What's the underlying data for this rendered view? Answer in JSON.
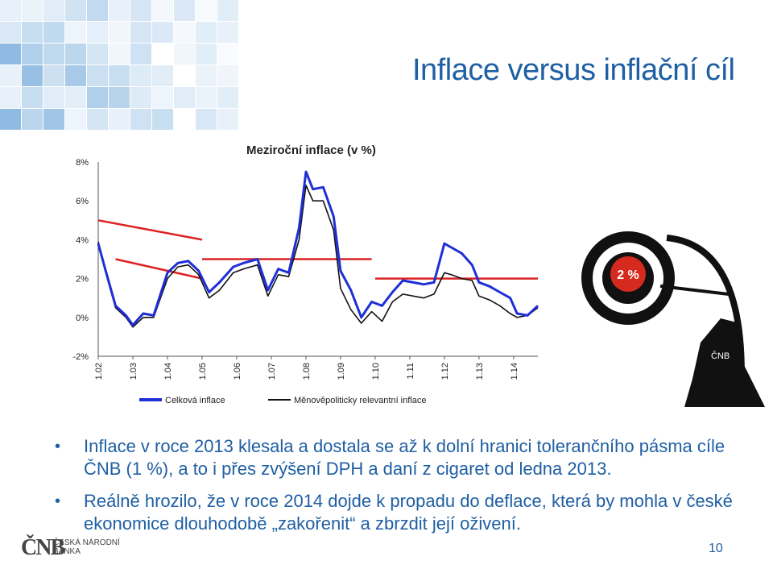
{
  "slide": {
    "title": "Inflace versus inflační cíl",
    "page_number": "10",
    "logo_mark": "ČNB",
    "logo_name": "ČESKÁ NÁRODNÍ BANKA"
  },
  "bullets": [
    "Inflace v roce 2013 klesala a dostala se až k dolní hranici tolerančního pásma cíle ČNB (1 %), a to i přes zvýšení DPH a daní z cigaret od ledna 2013.",
    "Reálně hrozilo, že v roce 2014 dojde k propadu do deflace, která by mohla v české ekonomice dlouhodobě „zakořenit“ a zbrzdit její oživení."
  ],
  "target": {
    "label": "2 %",
    "figure_label": "ČNB"
  },
  "chart_data": {
    "type": "line",
    "title": "Meziroční inflace (v %)",
    "xlabel": "",
    "ylabel": "",
    "ylim": [
      -2,
      8
    ],
    "yticks": [
      "8%",
      "6%",
      "4%",
      "2%",
      "0%",
      "-2%"
    ],
    "x_ticklabels": [
      "1.02",
      "1.03",
      "1.04",
      "1.05",
      "1.06",
      "1.07",
      "1.08",
      "1.09",
      "1.10",
      "1.11",
      "1.12",
      "1.13",
      "1.14"
    ],
    "x_range": [
      2002.0,
      2014.7
    ],
    "grid": false,
    "legend_position": "bottom",
    "colors": {
      "headline": "#1f2fd6",
      "monetary": "#111111",
      "target": "#dd2222"
    },
    "series": [
      {
        "name": "Celková inflace",
        "x": [
          2002.0,
          2002.2,
          2002.5,
          2002.8,
          2003.0,
          2003.3,
          2003.6,
          2004.0,
          2004.3,
          2004.6,
          2004.9,
          2005.2,
          2005.5,
          2005.9,
          2006.2,
          2006.6,
          2006.9,
          2007.2,
          2007.5,
          2007.8,
          2008.0,
          2008.2,
          2008.5,
          2008.8,
          2009.0,
          2009.3,
          2009.6,
          2009.9,
          2010.2,
          2010.5,
          2010.8,
          2011.1,
          2011.4,
          2011.7,
          2012.0,
          2012.2,
          2012.5,
          2012.8,
          2013.0,
          2013.3,
          2013.6,
          2013.9,
          2014.1,
          2014.4,
          2014.7
        ],
        "values": [
          3.8,
          2.5,
          0.6,
          0.1,
          -0.4,
          0.2,
          0.1,
          2.3,
          2.8,
          2.9,
          2.4,
          1.3,
          1.8,
          2.6,
          2.8,
          3.0,
          1.4,
          2.5,
          2.3,
          4.6,
          7.5,
          6.6,
          6.7,
          5.2,
          2.4,
          1.4,
          0.0,
          0.8,
          0.6,
          1.3,
          1.9,
          1.8,
          1.7,
          1.8,
          3.8,
          3.6,
          3.3,
          2.7,
          1.8,
          1.6,
          1.3,
          1.0,
          0.2,
          0.1,
          0.6
        ]
      },
      {
        "name": "Měnověpoliticky relevantní inflace",
        "x": [
          2002.0,
          2002.2,
          2002.5,
          2002.8,
          2003.0,
          2003.3,
          2003.6,
          2004.0,
          2004.3,
          2004.6,
          2004.9,
          2005.2,
          2005.5,
          2005.9,
          2006.2,
          2006.6,
          2006.9,
          2007.2,
          2007.5,
          2007.8,
          2008.0,
          2008.2,
          2008.5,
          2008.8,
          2009.0,
          2009.3,
          2009.6,
          2009.9,
          2010.2,
          2010.5,
          2010.8,
          2011.1,
          2011.4,
          2011.7,
          2012.0,
          2012.2,
          2012.5,
          2012.8,
          2013.0,
          2013.3,
          2013.6,
          2013.9,
          2014.1,
          2014.4,
          2014.7
        ],
        "values": [
          3.9,
          2.4,
          0.5,
          0.0,
          -0.5,
          0.0,
          0.0,
          2.0,
          2.6,
          2.7,
          2.2,
          1.0,
          1.4,
          2.3,
          2.5,
          2.7,
          1.1,
          2.2,
          2.1,
          4.0,
          6.8,
          6.0,
          6.0,
          4.5,
          1.5,
          0.4,
          -0.3,
          0.3,
          -0.2,
          0.8,
          1.2,
          1.1,
          1.0,
          1.2,
          2.3,
          2.2,
          2.0,
          1.9,
          1.1,
          0.9,
          0.6,
          0.2,
          0.0,
          0.1,
          0.5
        ]
      }
    ],
    "target_segments": [
      {
        "x": [
          2002.0,
          2005.0
        ],
        "values": [
          5.0,
          4.0
        ]
      },
      {
        "x": [
          2002.5,
          2005.0
        ],
        "values": [
          3.0,
          2.0
        ]
      },
      {
        "x": [
          2005.0,
          2009.9
        ],
        "values": [
          3.0,
          3.0
        ]
      },
      {
        "x": [
          2010.0,
          2014.7
        ],
        "values": [
          2.0,
          2.0
        ]
      }
    ]
  }
}
